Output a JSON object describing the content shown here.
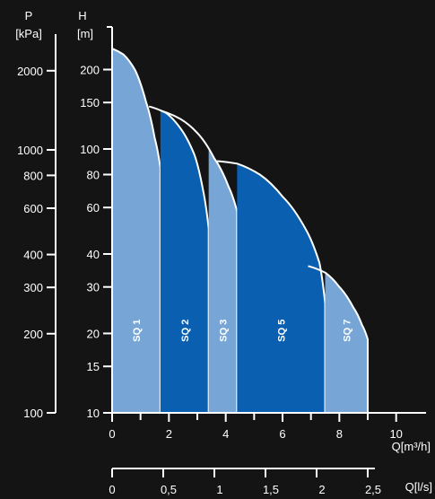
{
  "chart_data": {
    "type": "area",
    "title": "",
    "left_axis": {
      "label_line1": "P",
      "label_line2": "[kPa]",
      "ticks": [
        {
          "value": 100,
          "label": "100"
        },
        {
          "value": 200,
          "label": "200"
        },
        {
          "value": 300,
          "label": "300"
        },
        {
          "value": 400,
          "label": "400"
        },
        {
          "value": 600,
          "label": "600"
        },
        {
          "value": 800,
          "label": "800"
        },
        {
          "value": 1000,
          "label": "1000"
        },
        {
          "value": 2000,
          "label": "2000"
        }
      ]
    },
    "y_axis": {
      "label_line1": "H",
      "label_line2": "[m]",
      "scale": "log",
      "range": [
        10,
        270
      ],
      "ticks": [
        {
          "value": 10,
          "label": "10"
        },
        {
          "value": 15,
          "label": "15"
        },
        {
          "value": 20,
          "label": "20"
        },
        {
          "value": 30,
          "label": "30"
        },
        {
          "value": 40,
          "label": "40"
        },
        {
          "value": 60,
          "label": "60"
        },
        {
          "value": 80,
          "label": "80"
        },
        {
          "value": 100,
          "label": "100"
        },
        {
          "value": 150,
          "label": "150"
        },
        {
          "value": 200,
          "label": "200"
        }
      ]
    },
    "x_axis": {
      "label": "Q[m³/h]",
      "range": [
        0,
        11
      ],
      "ticks": [
        {
          "value": 0,
          "label": "0"
        },
        {
          "value": 2,
          "label": "2"
        },
        {
          "value": 4,
          "label": "4"
        },
        {
          "value": 6,
          "label": "6"
        },
        {
          "value": 8,
          "label": "8"
        },
        {
          "value": 10,
          "label": "10"
        }
      ],
      "minor_ticks": [
        1,
        3,
        5,
        7,
        9
      ]
    },
    "x2_axis": {
      "label": "Q[l/s]",
      "ticks": [
        {
          "value": 0,
          "label": "0"
        },
        {
          "value": 0.5,
          "label": "0,5"
        },
        {
          "value": 1,
          "label": "1"
        },
        {
          "value": 1.5,
          "label": "1,5"
        },
        {
          "value": 2,
          "label": "2"
        },
        {
          "value": 2.5,
          "label": "2,5"
        }
      ]
    },
    "series": [
      {
        "name": "SQ 1",
        "color": "#77a6d6",
        "q_start": 0,
        "q_end": 1.7,
        "curve": [
          [
            0,
            240
          ],
          [
            0.4,
            228
          ],
          [
            0.8,
            200
          ],
          [
            1.2,
            150
          ],
          [
            1.5,
            110
          ],
          [
            1.7,
            85
          ]
        ]
      },
      {
        "name": "SQ 2",
        "color": "#0a5fb0",
        "q_start": 1.7,
        "q_end": 3.4,
        "curve": [
          [
            1.3,
            145
          ],
          [
            1.9,
            137
          ],
          [
            2.4,
            120
          ],
          [
            2.9,
            95
          ],
          [
            3.2,
            70
          ],
          [
            3.4,
            50
          ]
        ]
      },
      {
        "name": "SQ 3",
        "color": "#77a6d6",
        "q_start": 3.4,
        "q_end": 4.4,
        "curve": [
          [
            1.7,
            140
          ],
          [
            2.4,
            130
          ],
          [
            3.0,
            115
          ],
          [
            3.6,
            92
          ],
          [
            4.1,
            72
          ],
          [
            4.4,
            58
          ]
        ]
      },
      {
        "name": "SQ 5",
        "color": "#0a5fb0",
        "q_start": 4.4,
        "q_end": 7.5,
        "curve": [
          [
            3.7,
            90
          ],
          [
            4.4,
            88
          ],
          [
            5.2,
            80
          ],
          [
            6.0,
            66
          ],
          [
            6.8,
            50
          ],
          [
            7.3,
            37
          ],
          [
            7.5,
            26
          ]
        ]
      },
      {
        "name": "SQ 7",
        "color": "#77a6d6",
        "q_start": 7.5,
        "q_end": 9.0,
        "curve": [
          [
            6.9,
            36
          ],
          [
            7.5,
            34
          ],
          [
            8.0,
            30
          ],
          [
            8.5,
            25
          ],
          [
            8.8,
            21.5
          ],
          [
            9.0,
            19
          ]
        ]
      }
    ]
  }
}
